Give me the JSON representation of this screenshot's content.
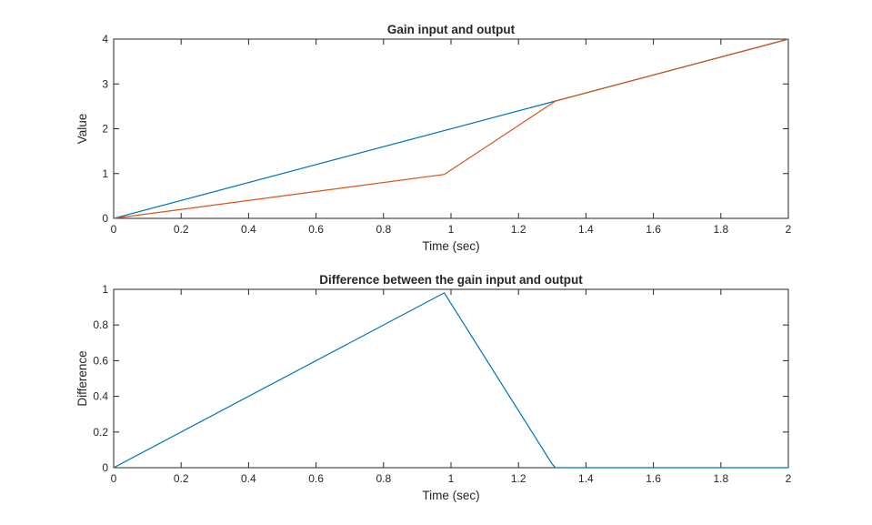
{
  "chart_data": [
    {
      "type": "line",
      "title": "Gain input and output",
      "xlabel": "Time (sec)",
      "ylabel": "Value",
      "xlim": [
        0,
        2
      ],
      "ylim": [
        0,
        4
      ],
      "xticks": [
        "0",
        "0.2",
        "0.4",
        "0.6",
        "0.8",
        "1",
        "1.2",
        "1.4",
        "1.6",
        "1.8",
        "2"
      ],
      "yticks": [
        "0",
        "1",
        "2",
        "3",
        "4"
      ],
      "grid": false,
      "series": [
        {
          "color": "#0072BD",
          "x": [
            0,
            1.31,
            2
          ],
          "y": [
            0,
            2.62,
            4
          ]
        },
        {
          "color": "#D95319",
          "x": [
            0,
            0.98,
            1.31,
            2
          ],
          "y": [
            0,
            0.98,
            2.62,
            4
          ]
        }
      ]
    },
    {
      "type": "line",
      "title": "Difference between the gain input and output",
      "xlabel": "Time (sec)",
      "ylabel": "Difference",
      "xlim": [
        0,
        2
      ],
      "ylim": [
        0,
        1
      ],
      "xticks": [
        "0",
        "0.2",
        "0.4",
        "0.6",
        "0.8",
        "1",
        "1.2",
        "1.4",
        "1.6",
        "1.8",
        "2"
      ],
      "yticks": [
        "0",
        "0.2",
        "0.4",
        "0.6",
        "0.8",
        "1"
      ],
      "grid": false,
      "series": [
        {
          "color": "#0072BD",
          "x": [
            0,
            0.98,
            1.3,
            1.31,
            2
          ],
          "y": [
            0,
            0.98,
            0.02,
            0,
            0
          ]
        }
      ]
    }
  ]
}
